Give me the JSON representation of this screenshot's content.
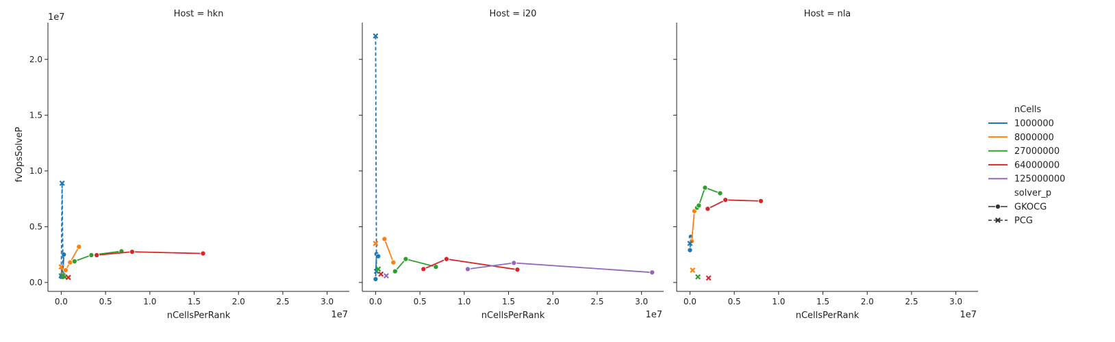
{
  "figure": {
    "ylabel": "fvOpsSolveP",
    "xlabel": "nCellsPerRank",
    "x_offset_text": "1e7",
    "y_offset_text": "1e7"
  },
  "legend": {
    "hue_title": "nCells",
    "hue_entries": [
      {
        "label": "1000000",
        "color": "#1f77b4"
      },
      {
        "label": "8000000",
        "color": "#ff7f0e"
      },
      {
        "label": "27000000",
        "color": "#2ca02c"
      },
      {
        "label": "64000000",
        "color": "#d62728"
      },
      {
        "label": "125000000",
        "color": "#9467bd"
      }
    ],
    "style_title": "solver_p",
    "style_entries": [
      {
        "label": "GKOCG",
        "marker": "circle",
        "dash": "solid"
      },
      {
        "label": "PCG",
        "marker": "x",
        "dash": "dashed"
      }
    ]
  },
  "chart_data": [
    {
      "type": "line",
      "title": "Host = hkn",
      "xlabel": "nCellsPerRank",
      "ylabel": "fvOpsSolveP",
      "x_scale_note": "1e7",
      "y_scale_note": "1e7",
      "xlim": [
        -0.15,
        3.25
      ],
      "ylim": [
        -0.08,
        2.33
      ],
      "xticks": [
        "0.0",
        "0.5",
        "1.0",
        "1.5",
        "2.0",
        "2.5",
        "3.0"
      ],
      "yticks": [
        "0.0",
        "0.5",
        "1.0",
        "1.5",
        "2.0"
      ],
      "grid": false,
      "legend_position": "right",
      "series": [
        {
          "nCells": "1000000",
          "solver_p": "GKOCG",
          "color": "#1f77b4",
          "x": [
            0.0,
            0.02,
            0.03
          ],
          "y": [
            0.05,
            0.1,
            0.25
          ]
        },
        {
          "nCells": "8000000",
          "solver_p": "GKOCG",
          "color": "#ff7f0e",
          "x": [
            0.05,
            0.1,
            0.2
          ],
          "y": [
            0.11,
            0.18,
            0.32
          ]
        },
        {
          "nCells": "27000000",
          "solver_p": "GKOCG",
          "color": "#2ca02c",
          "x": [
            0.15,
            0.34,
            0.68
          ],
          "y": [
            0.19,
            0.245,
            0.28
          ]
        },
        {
          "nCells": "64000000",
          "solver_p": "GKOCG",
          "color": "#d62728",
          "x": [
            0.4,
            0.8,
            1.6
          ],
          "y": [
            0.245,
            0.275,
            0.26
          ]
        },
        {
          "nCells": "1000000",
          "solver_p": "PCG",
          "color": "#1f77b4",
          "x": [
            0.0,
            0.01,
            0.02
          ],
          "y": [
            0.06,
            0.89,
            0.06
          ]
        },
        {
          "nCells": "8000000",
          "solver_p": "PCG",
          "color": "#ff7f0e",
          "x": [
            0.0,
            0.02
          ],
          "y": [
            0.14,
            0.06
          ]
        },
        {
          "nCells": "27000000",
          "solver_p": "PCG",
          "color": "#2ca02c",
          "x": [
            0.02,
            0.04
          ],
          "y": [
            0.06,
            0.05
          ]
        },
        {
          "nCells": "64000000",
          "solver_p": "PCG",
          "color": "#d62728",
          "x": [
            0.08
          ],
          "y": [
            0.045
          ]
        }
      ]
    },
    {
      "type": "line",
      "title": "Host = i20",
      "xlabel": "nCellsPerRank",
      "ylabel": "fvOpsSolveP",
      "x_scale_note": "1e7",
      "y_scale_note": "1e7",
      "xlim": [
        -0.15,
        3.25
      ],
      "ylim": [
        -0.08,
        2.33
      ],
      "xticks": [
        "0.0",
        "0.5",
        "1.0",
        "1.5",
        "2.0",
        "2.5",
        "3.0"
      ],
      "yticks": [
        "0.0",
        "0.5",
        "1.0",
        "1.5",
        "2.0"
      ],
      "grid": false,
      "legend_position": "right",
      "series": [
        {
          "nCells": "1000000",
          "solver_p": "GKOCG",
          "color": "#1f77b4",
          "x": [
            0.0,
            0.01,
            0.03
          ],
          "y": [
            0.03,
            0.255,
            0.235
          ]
        },
        {
          "nCells": "8000000",
          "solver_p": "GKOCG",
          "color": "#ff7f0e",
          "x": [
            0.1,
            0.2
          ],
          "y": [
            0.39,
            0.18
          ]
        },
        {
          "nCells": "27000000",
          "solver_p": "GKOCG",
          "color": "#2ca02c",
          "x": [
            0.22,
            0.34,
            0.68
          ],
          "y": [
            0.1,
            0.21,
            0.14
          ]
        },
        {
          "nCells": "64000000",
          "solver_p": "GKOCG",
          "color": "#d62728",
          "x": [
            0.54,
            0.8,
            1.6
          ],
          "y": [
            0.12,
            0.21,
            0.115
          ]
        },
        {
          "nCells": "125000000",
          "solver_p": "GKOCG",
          "color": "#9467bd",
          "x": [
            1.04,
            1.56,
            3.12
          ],
          "y": [
            0.12,
            0.175,
            0.09
          ]
        },
        {
          "nCells": "1000000",
          "solver_p": "PCG",
          "color": "#1f77b4",
          "x": [
            0.0,
            0.01
          ],
          "y": [
            2.21,
            0.1
          ]
        },
        {
          "nCells": "8000000",
          "solver_p": "PCG",
          "color": "#ff7f0e",
          "x": [
            0.0
          ],
          "y": [
            0.35
          ]
        },
        {
          "nCells": "27000000",
          "solver_p": "PCG",
          "color": "#2ca02c",
          "x": [
            0.03
          ],
          "y": [
            0.12
          ]
        },
        {
          "nCells": "64000000",
          "solver_p": "PCG",
          "color": "#d62728",
          "x": [
            0.06
          ],
          "y": [
            0.075
          ]
        },
        {
          "nCells": "125000000",
          "solver_p": "PCG",
          "color": "#9467bd",
          "x": [
            0.12
          ],
          "y": [
            0.06
          ]
        }
      ]
    },
    {
      "type": "line",
      "title": "Host = nla",
      "xlabel": "nCellsPerRank",
      "ylabel": "fvOpsSolveP",
      "x_scale_note": "1e7",
      "y_scale_note": "1e7",
      "xlim": [
        -0.15,
        3.25
      ],
      "ylim": [
        -0.08,
        2.33
      ],
      "xticks": [
        "0.0",
        "0.5",
        "1.0",
        "1.5",
        "2.0",
        "2.5",
        "3.0"
      ],
      "yticks": [
        "0.0",
        "0.5",
        "1.0",
        "1.5",
        "2.0"
      ],
      "grid": false,
      "legend_position": "right",
      "series": [
        {
          "nCells": "1000000",
          "solver_p": "GKOCG",
          "color": "#1f77b4",
          "x": [
            0.0,
            0.01,
            0.02
          ],
          "y": [
            0.29,
            0.41,
            0.38
          ]
        },
        {
          "nCells": "8000000",
          "solver_p": "GKOCG",
          "color": "#ff7f0e",
          "x": [
            0.02,
            0.05
          ],
          "y": [
            0.37,
            0.64
          ]
        },
        {
          "nCells": "27000000",
          "solver_p": "GKOCG",
          "color": "#2ca02c",
          "x": [
            0.08,
            0.1,
            0.17,
            0.34
          ],
          "y": [
            0.67,
            0.69,
            0.85,
            0.8
          ]
        },
        {
          "nCells": "64000000",
          "solver_p": "GKOCG",
          "color": "#d62728",
          "x": [
            0.2,
            0.4,
            0.8
          ],
          "y": [
            0.66,
            0.74,
            0.73
          ]
        },
        {
          "nCells": "1000000",
          "solver_p": "PCG",
          "color": "#1f77b4",
          "x": [
            0.0
          ],
          "y": [
            0.35
          ]
        },
        {
          "nCells": "8000000",
          "solver_p": "PCG",
          "color": "#ff7f0e",
          "x": [
            0.03
          ],
          "y": [
            0.11
          ]
        },
        {
          "nCells": "27000000",
          "solver_p": "PCG",
          "color": "#2ca02c",
          "x": [
            0.09
          ],
          "y": [
            0.05
          ]
        },
        {
          "nCells": "64000000",
          "solver_p": "PCG",
          "color": "#d62728",
          "x": [
            0.21
          ],
          "y": [
            0.04
          ]
        }
      ]
    }
  ]
}
